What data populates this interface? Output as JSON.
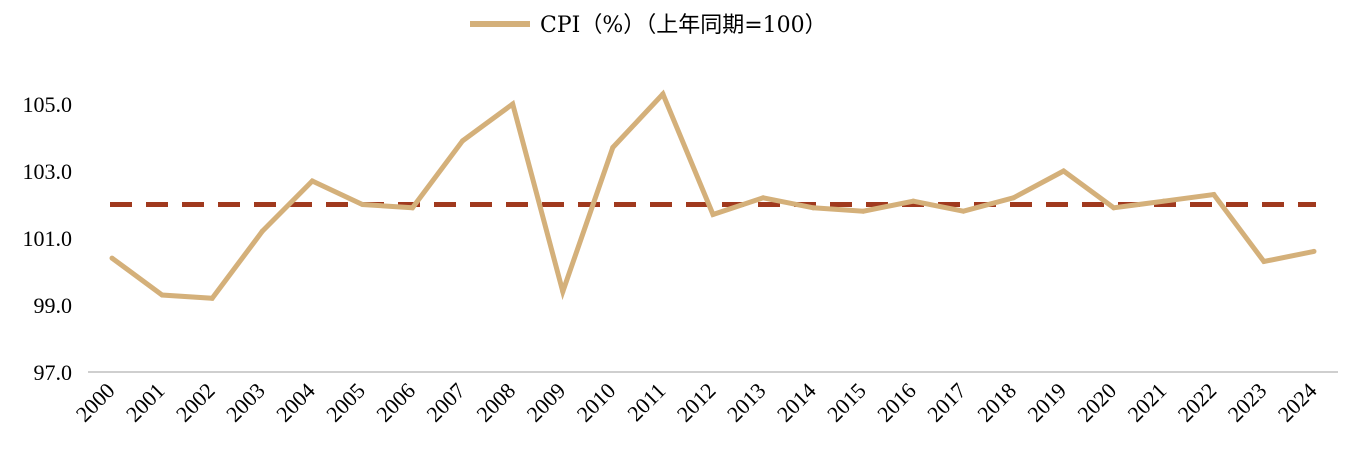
{
  "chart_data": {
    "type": "line",
    "legend_position": "top-center",
    "grid": false,
    "x": [
      "2000",
      "2001",
      "2002",
      "2003",
      "2004",
      "2005",
      "2006",
      "2007",
      "2008",
      "2009",
      "2010",
      "2011",
      "2012",
      "2013",
      "2014",
      "2015",
      "2016",
      "2017",
      "2018",
      "2019",
      "2020",
      "2021",
      "2022",
      "2023",
      "2024"
    ],
    "series": [
      {
        "name": "CPI（%）（上年同期=100）",
        "color": "#D4B07A",
        "values": [
          100.4,
          99.3,
          99.2,
          101.2,
          102.7,
          102.0,
          101.9,
          103.9,
          105.0,
          99.4,
          103.7,
          105.3,
          101.7,
          102.2,
          101.9,
          101.8,
          102.1,
          101.8,
          102.2,
          103.0,
          101.9,
          102.1,
          102.3,
          100.3,
          100.6
        ]
      }
    ],
    "reference_line": {
      "value": 102.0,
      "color": "#A0391E",
      "style": "dashed"
    },
    "ylim": [
      97.0,
      105.0
    ],
    "yticks": [
      "97.0",
      "99.0",
      "101.0",
      "103.0",
      "105.0"
    ]
  }
}
